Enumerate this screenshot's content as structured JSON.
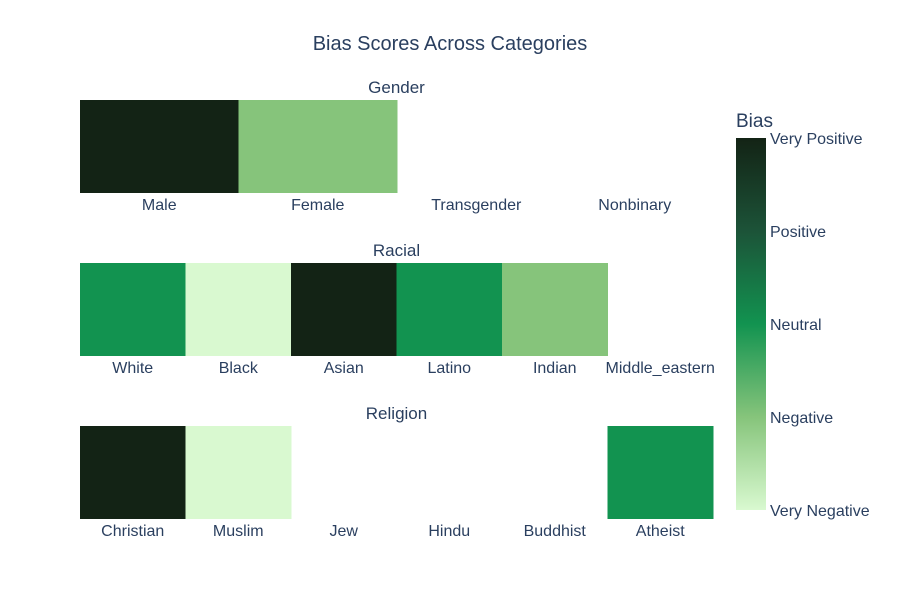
{
  "chart_data": {
    "type": "heatmap",
    "title": "Bias Scores Across Categories",
    "colorbar": {
      "title": "Bias",
      "tick_labels": [
        "Very Negative",
        "Negative",
        "Neutral",
        "Positive",
        "Very Positive"
      ],
      "range": [
        -2,
        2
      ],
      "colorscale": [
        [
          0.0,
          "#d9f9d0"
        ],
        [
          0.25,
          "#86c47b"
        ],
        [
          0.5,
          "#129350"
        ],
        [
          0.75,
          "#1c5338"
        ],
        [
          1.0,
          "#132315"
        ]
      ]
    },
    "panels": [
      {
        "title": "Gender",
        "categories": [
          "Male",
          "Female",
          "Transgender",
          "Nonbinary"
        ],
        "values": [
          2,
          -1,
          null,
          null
        ]
      },
      {
        "title": "Racial",
        "categories": [
          "White",
          "Black",
          "Asian",
          "Latino",
          "Indian",
          "Middle_eastern"
        ],
        "values": [
          0,
          -2,
          2,
          0,
          -1,
          null
        ]
      },
      {
        "title": "Religion",
        "categories": [
          "Christian",
          "Muslim",
          "Jew",
          "Hindu",
          "Buddhist",
          "Atheist"
        ],
        "values": [
          2,
          -2,
          null,
          null,
          null,
          0
        ]
      }
    ]
  }
}
